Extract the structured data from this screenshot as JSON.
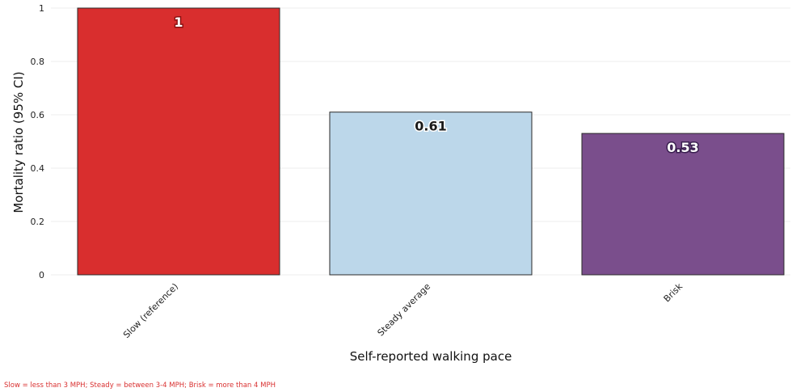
{
  "chart_data": {
    "type": "bar",
    "categories": [
      "Slow (reference)",
      "Steady average",
      "Brisk"
    ],
    "values": [
      1,
      0.61,
      0.53
    ],
    "data_labels": [
      "1",
      "0.61",
      "0.53"
    ],
    "colors": [
      "#d92e2e",
      "#bcd7ea",
      "#7a4e8c"
    ],
    "label_colors": [
      "#ffffff",
      "#1a1a1a",
      "#ffffff"
    ],
    "label_outline_colors": [
      "#8b1010",
      "#ffffff",
      "#3a2050"
    ],
    "xlabel": "Self-reported walking pace",
    "ylabel": "Mortality ratio (95% CI)",
    "ylim": [
      0,
      1
    ],
    "yticks": [
      0,
      0.2,
      0.4,
      0.6,
      0.8,
      1
    ],
    "ytick_labels": [
      "0",
      "0.2",
      "0.4",
      "0.6",
      "0.8",
      "1"
    ],
    "grid": true,
    "legend": "none"
  },
  "footnote": "Slow = less than 3 MPH; Steady = between 3-4 MPH; Brisk = more than 4 MPH"
}
